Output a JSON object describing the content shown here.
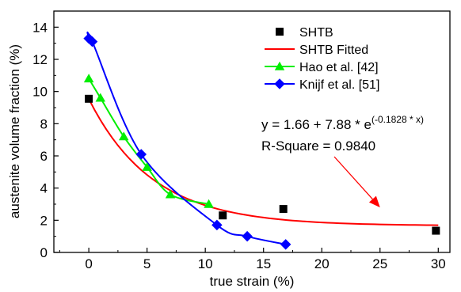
{
  "chart_data": {
    "type": "scatter",
    "xlabel": "true strain (%)",
    "ylabel": "austenite volume fraction (%)",
    "xlim": [
      -3,
      31
    ],
    "ylim": [
      0,
      15
    ],
    "x_ticks": [
      "0",
      "5",
      "10",
      "15",
      "20",
      "25",
      "30"
    ],
    "y_ticks": [
      "0",
      "2",
      "4",
      "6",
      "8",
      "10",
      "12",
      "14"
    ],
    "grid": false,
    "legend_position": "top-right",
    "series": [
      {
        "name": "SHTB",
        "style": "markers",
        "marker": "square",
        "color": "#000000",
        "x": [
          0,
          11.5,
          16.7,
          29.8
        ],
        "y": [
          9.55,
          2.3,
          2.7,
          1.35
        ]
      },
      {
        "name": "SHTB Fitted",
        "style": "line",
        "color": "#ff0000",
        "fit": {
          "a": 1.66,
          "b": 7.88,
          "k": -0.1828
        },
        "x_range": [
          0,
          30
        ]
      },
      {
        "name": "Hao et al. [42]",
        "style": "line+markers",
        "marker": "triangle",
        "color": "#00ee00",
        "x": [
          0,
          1,
          3,
          5,
          7,
          10.3
        ],
        "y": [
          10.8,
          9.6,
          7.2,
          5.3,
          3.6,
          3.0
        ]
      },
      {
        "name": "Knijf et al. [51]",
        "style": "line+markers",
        "marker": "diamond",
        "color": "#0000ff",
        "x": [
          0,
          0.3,
          4.5,
          11,
          13.6,
          16.9
        ],
        "y": [
          13.3,
          13.1,
          6.1,
          1.7,
          1.0,
          0.5
        ]
      }
    ],
    "annotation": {
      "equation_prefix": "y = 1.66 + 7.88 * e",
      "equation_exponent": "(-0.1828 * x)",
      "r_square": "R-Square = 0.9840",
      "arrow_to": {
        "x": 25,
        "y": 2.8
      }
    }
  }
}
